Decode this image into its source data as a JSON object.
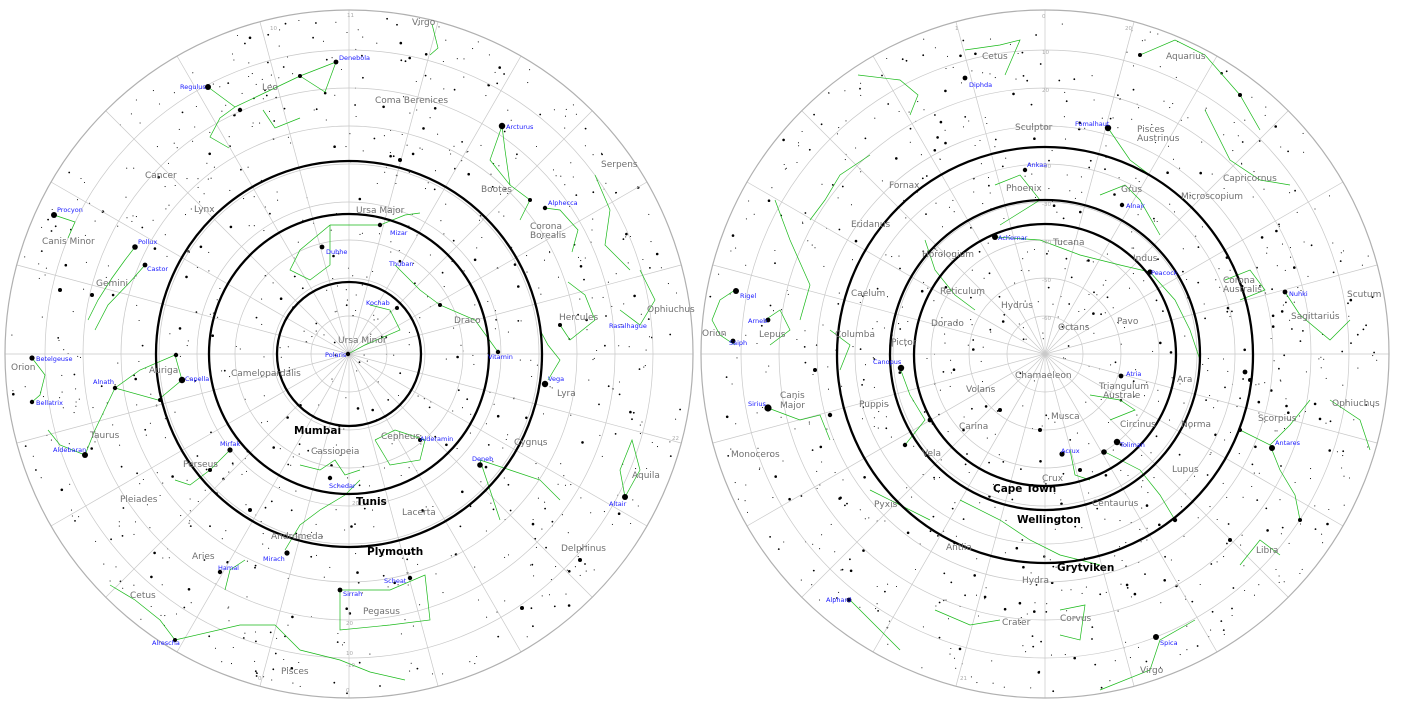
{
  "colors": {
    "background": "#ffffff",
    "grid": "#c8c8c8",
    "constellation_lines": "#19b919",
    "star_names": "#1a1aff",
    "constellation_names": "#707070",
    "horizon_circles": "#000000"
  },
  "northern_map": {
    "tick_labels": [
      "11",
      "10",
      "22",
      "20",
      "20",
      "0",
      "-10",
      "10",
      "0"
    ],
    "constellations": [
      "Virgo",
      "Leo",
      "Coma Berenices",
      "Cancer",
      "Lynx",
      "Bootes",
      "Serpens",
      "Corona",
      "Borealis",
      "Ursa Major",
      "Canis Minor",
      "Gemini",
      "Hercules",
      "Ophiuchus",
      "Draco",
      "Ursa Minor",
      "Orion",
      "Auriga",
      "Camelopardalis",
      "Lyra",
      "Taurus",
      "Cepheus",
      "Cassiopeia",
      "Cygnus",
      "Aquila",
      "Perseus",
      "Pleiades",
      "Lacerta",
      "Andromeda",
      "Delphinus",
      "Aries",
      "Pegasus",
      "Cetus",
      "Pisces"
    ],
    "stars": [
      "Denebola",
      "Regulus",
      "Arcturus",
      "Procyon",
      "Pollux",
      "Castor",
      "Mizar",
      "Dubhe",
      "Alphecca",
      "Thuban",
      "Kochab",
      "Polaris",
      "Betelgeuse",
      "Bellatrix",
      "Capella",
      "Alnath",
      "Vega",
      "Rasalhague",
      "Vitamin",
      "Aldebaran",
      "Mirfak",
      "Alderamin",
      "Deneb",
      "Schedar",
      "Altair",
      "Hamal",
      "Mirach",
      "Sirrah",
      "Scheat",
      "Alrescha"
    ],
    "cities": [
      "Mumbai",
      "Tunis",
      "Plymouth"
    ]
  },
  "southern_map": {
    "tick_labels": [
      "0",
      "1",
      "20",
      "-10",
      "-20",
      "-30",
      "-40",
      "-50",
      "-60",
      "10",
      "20",
      "21"
    ],
    "constellations": [
      "Cetus",
      "Aquarius",
      "Sculptor",
      "Pisces",
      "Austrinus",
      "Fornax",
      "Phoenix",
      "Grus",
      "Capricornus",
      "Microscopium",
      "Eridanus",
      "Horologium",
      "Tucana",
      "Indus",
      "Caelum",
      "Reticulum",
      "Hydrus",
      "Corona",
      "Australis",
      "Scutum",
      "Dorado",
      "Octans",
      "Pavo",
      "Sagittarius",
      "Orion",
      "Lepus",
      "Columba",
      "Pictor",
      "Chamaeleon",
      "Ara",
      "Ophiuchus",
      "Volans",
      "Triangulum",
      "Australe",
      "Canis",
      "Major",
      "Puppis",
      "Carina",
      "Musca",
      "Circinus",
      "Norma",
      "Scorpius",
      "Monoceros",
      "Vela",
      "Crux",
      "Lupus",
      "Centaurus",
      "Pyxis",
      "Antlia",
      "Hydra",
      "Libra",
      "Crater",
      "Corvus",
      "Virgo"
    ],
    "stars": [
      "Diphda",
      "Fomalhaut",
      "Ankaa",
      "Alnair",
      "Achernar",
      "Peacock",
      "Rigel",
      "Nuhki",
      "Arneb",
      "Saiph",
      "Canopus",
      "Atria",
      "Sirius",
      "Acrux",
      "Toliman",
      "Antares",
      "Alphard",
      "Spica"
    ],
    "cities": [
      "Cape Town",
      "Wellington",
      "Grytviken"
    ]
  }
}
